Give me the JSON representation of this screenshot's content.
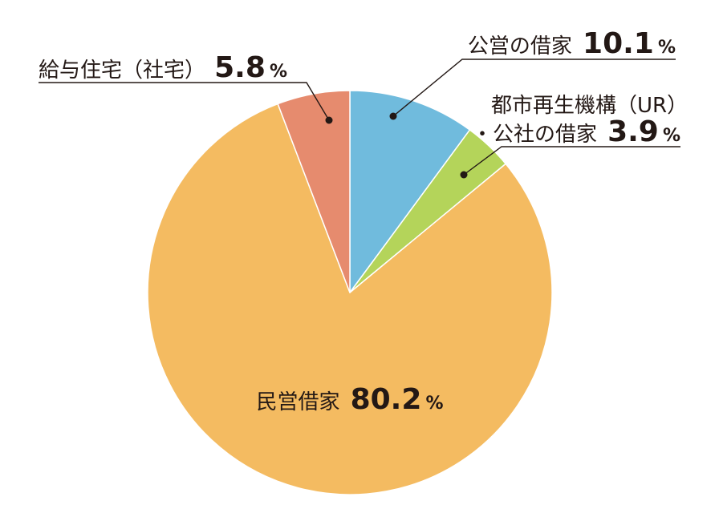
{
  "chart_data": {
    "type": "pie",
    "title": "",
    "start_angle_deg": 0,
    "direction": "clockwise",
    "unit": "%",
    "slices": [
      {
        "label": "公営の借家",
        "label_line2": "",
        "value": 10.1,
        "value_text": "10.1",
        "color": "#70BBDD"
      },
      {
        "label": "都市再生機構（UR）",
        "label_line2": "・公社の借家",
        "value": 3.9,
        "value_text": "3.9",
        "color": "#B4D45A"
      },
      {
        "label": "民営借家",
        "label_line2": "",
        "value": 80.2,
        "value_text": "80.2",
        "color": "#F4BB61"
      },
      {
        "label": "給与住宅（社宅）",
        "label_line2": "",
        "value": 5.8,
        "value_text": "5.8",
        "color": "#E68B6E"
      }
    ]
  }
}
